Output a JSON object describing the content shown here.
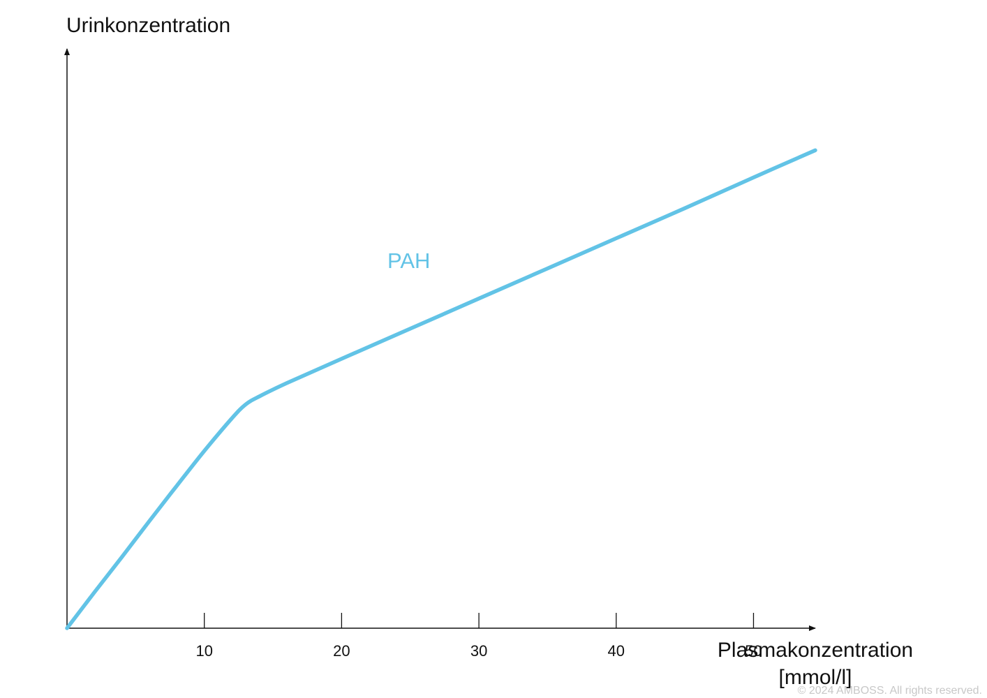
{
  "chart_data": {
    "type": "line",
    "xlabel": "Plasmakonzentration",
    "xunit": "[mmol/l]",
    "ylabel": "Urinkonzentration",
    "xticks": [
      10,
      20,
      30,
      40,
      50
    ],
    "xlim": [
      0,
      54.5
    ],
    "ylim": [
      0,
      100
    ],
    "yticks": [],
    "grid": false,
    "series": [
      {
        "name": "PAH",
        "color": "#62c3e6",
        "x": [
          0,
          2,
          4,
          6,
          8,
          10,
          12,
          13,
          14,
          16,
          20,
          25,
          30,
          35,
          40,
          45,
          50,
          54.5
        ],
        "y": [
          0,
          6.2,
          12.3,
          18.5,
          24.6,
          30.6,
          36.2,
          38.6,
          40.0,
          42.3,
          46.5,
          51.7,
          56.9,
          62.1,
          67.3,
          72.5,
          77.8,
          82.5
        ]
      }
    ]
  },
  "series_label": "PAH",
  "colors": {
    "series": "#62c3e6",
    "axis": "#111111",
    "copyright": "#c8c8c8"
  },
  "copyright": "© 2024 AMBOSS. All rights reserved."
}
